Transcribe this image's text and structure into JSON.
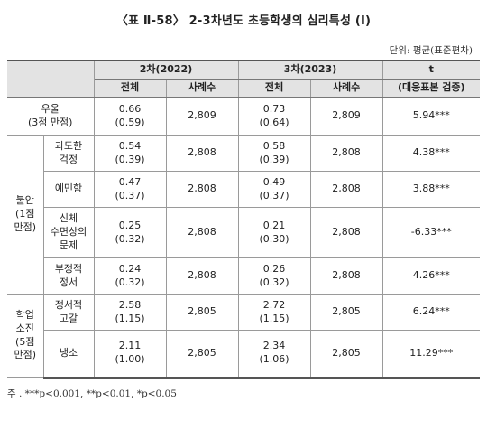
{
  "title": "〈표 Ⅱ-58〉 2-3차년도 초등학생의 심리특성 (Ⅰ)",
  "unit": "단위: 평균(표준편차)",
  "headers": {
    "wave2": "2차(2022)",
    "wave3": "3차(2023)",
    "t": "t",
    "total": "전체",
    "cases": "사례수",
    "t_sub": "(대응표본 검증)"
  },
  "groups": {
    "anxiety": "불안\n(1점\n만점)",
    "burnout": "학업\n소진\n(5점\n만점)"
  },
  "rows": [
    {
      "label": "우울\n(3점 만점)",
      "w2_mean": "0.66",
      "w2_sd": "(0.59)",
      "w2_n": "2,809",
      "w3_mean": "0.73",
      "w3_sd": "(0.64)",
      "w3_n": "2,809",
      "t": "5.94***"
    },
    {
      "label": "과도한\n걱정",
      "w2_mean": "0.54",
      "w2_sd": "(0.39)",
      "w2_n": "2,808",
      "w3_mean": "0.58",
      "w3_sd": "(0.39)",
      "w3_n": "2,808",
      "t": "4.38***"
    },
    {
      "label": "예민함",
      "w2_mean": "0.47",
      "w2_sd": "(0.37)",
      "w2_n": "2,808",
      "w3_mean": "0.49",
      "w3_sd": "(0.37)",
      "w3_n": "2,808",
      "t": "3.88***"
    },
    {
      "label": "신체\n수면상의\n문제",
      "w2_mean": "0.25",
      "w2_sd": "(0.32)",
      "w2_n": "2,808",
      "w3_mean": "0.21",
      "w3_sd": "(0.30)",
      "w3_n": "2,808",
      "t": "-6.33***"
    },
    {
      "label": "부정적\n정서",
      "w2_mean": "0.24",
      "w2_sd": "(0.32)",
      "w2_n": "2,808",
      "w3_mean": "0.26",
      "w3_sd": "(0.32)",
      "w3_n": "2,808",
      "t": "4.26***"
    },
    {
      "label": "정서적\n고갈",
      "w2_mean": "2.58",
      "w2_sd": "(1.15)",
      "w2_n": "2,805",
      "w3_mean": "2.72",
      "w3_sd": "(1.15)",
      "w3_n": "2,805",
      "t": "6.24***"
    },
    {
      "label": "냉소",
      "w2_mean": "2.11",
      "w2_sd": "(1.00)",
      "w2_n": "2,805",
      "w3_mean": "2.34",
      "w3_sd": "(1.06)",
      "w3_n": "2,805",
      "t": "11.29***"
    }
  ],
  "note": "주 . ***p<0.001, **p<0.01, *p<0.05"
}
